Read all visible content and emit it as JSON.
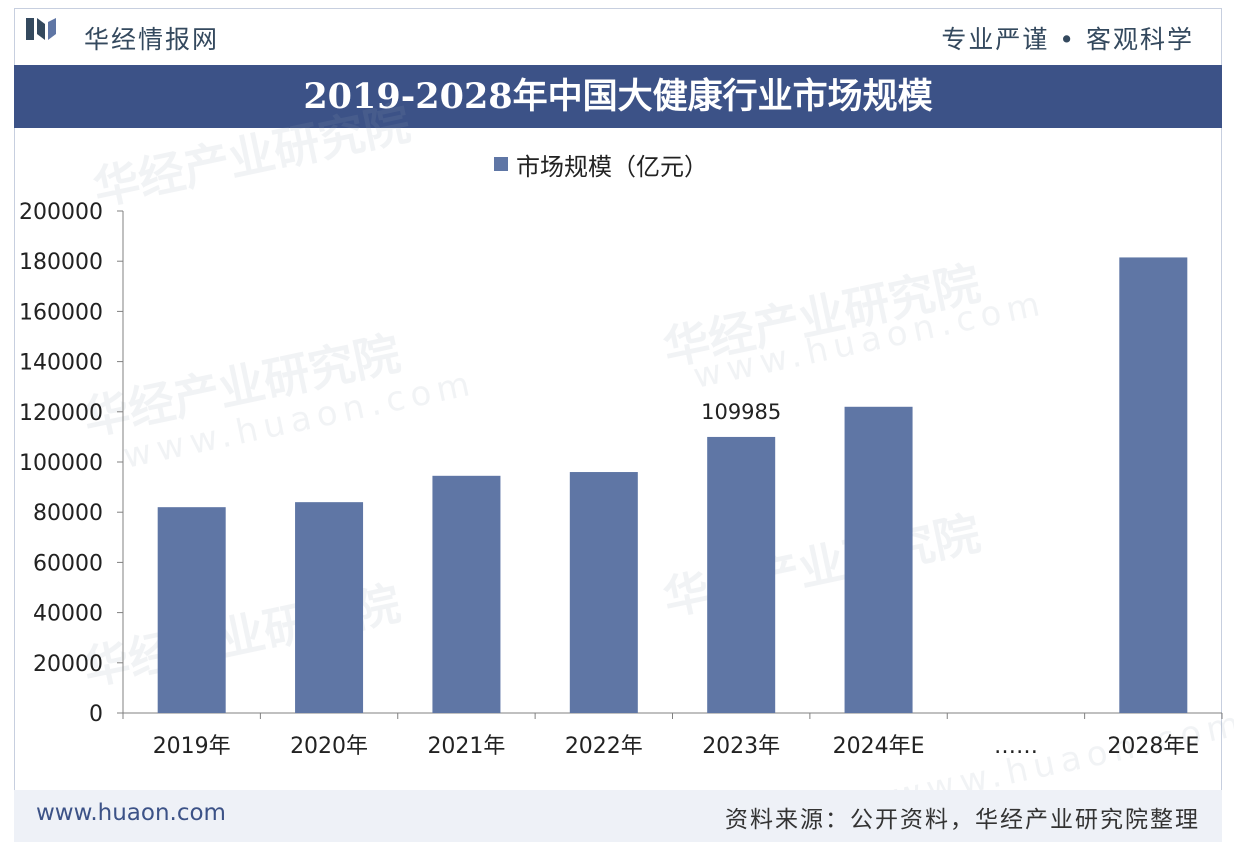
{
  "header": {
    "brand": "华经情报网",
    "motto": "专业严谨 • 客观科学"
  },
  "footer": {
    "site": "www.huaon.com",
    "source": "资料来源：公开资料，华经产业研究院整理"
  },
  "watermark": {
    "text": "华经产业研究院",
    "url": "www.huaon.com"
  },
  "colors": {
    "title_band": "#3c5287",
    "bar": "#5f76a5",
    "brand_text": "#34495e"
  },
  "chart_data": {
    "type": "bar",
    "title": "2019-2028年中国大健康行业市场规模",
    "categories": [
      "2019年",
      "2020年",
      "2021年",
      "2022年",
      "2023年",
      "2024年E",
      "……",
      "2028年E"
    ],
    "series": [
      {
        "name": "市场规模（亿元）",
        "values": [
          82000,
          84000,
          94500,
          96000,
          109985,
          122000,
          null,
          181500
        ]
      }
    ],
    "data_labels": [
      null,
      null,
      null,
      null,
      "109985",
      null,
      null,
      null
    ],
    "ylim": [
      0,
      200000
    ],
    "yticks": [
      "0",
      "20000",
      "40000",
      "60000",
      "80000",
      "100000",
      "120000",
      "140000",
      "160000",
      "180000",
      "200000"
    ],
    "xlabel": "",
    "ylabel": "",
    "legend": "top-center",
    "grid": false
  }
}
